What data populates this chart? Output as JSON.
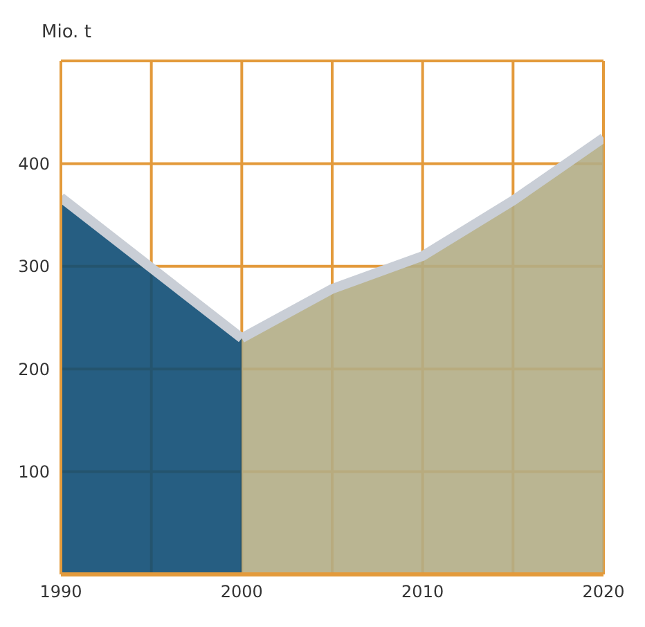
{
  "chart_data": {
    "type": "area",
    "ylabel": "Mio. t",
    "series": [
      {
        "color": "#0e4c74",
        "x": [
          1990,
          2000
        ],
        "values": [
          367,
          230
        ]
      },
      {
        "color": "#b3ad86",
        "x": [
          2000,
          2005,
          2010,
          2015,
          2020
        ],
        "values": [
          230,
          278,
          310,
          364,
          425
        ]
      }
    ],
    "xlim": [
      1990,
      2020
    ],
    "xticks": [
      1990,
      {
        "value": 1995,
        "label": null
      },
      2000,
      {
        "value": 2005,
        "label": null
      },
      2010,
      {
        "value": 2015,
        "label": null
      },
      2020
    ],
    "ylim": [
      0,
      500
    ],
    "yticks": [
      {
        "value": 0,
        "label": null
      },
      100,
      200,
      300,
      400,
      {
        "value": 500,
        "label": null
      }
    ],
    "grid": true
  }
}
